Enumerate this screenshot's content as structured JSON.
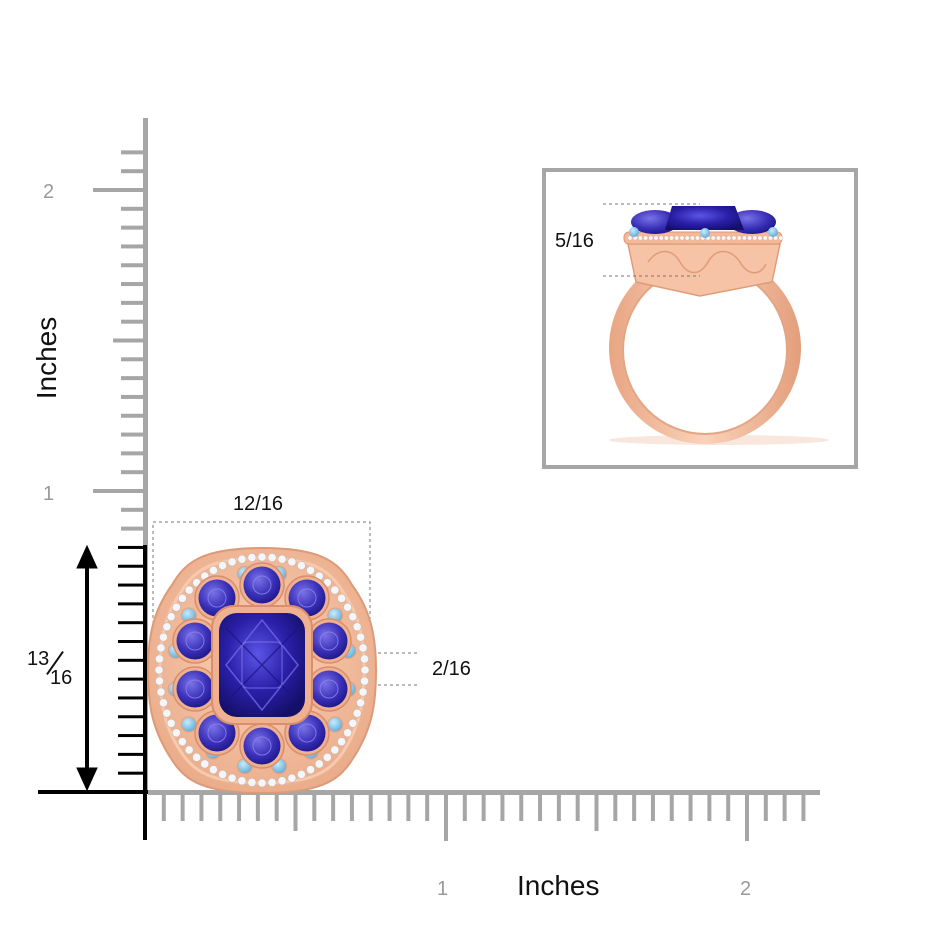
{
  "axes": {
    "x_title": "Inches",
    "y_title": "Inches",
    "x_ticks": [
      "1",
      "2"
    ],
    "y_ticks": [
      "1",
      "2"
    ]
  },
  "dimensions": {
    "width": "12/16",
    "height_num": "13",
    "height_den": "16",
    "shank": "2/16",
    "profile_height": "5/16"
  },
  "colors": {
    "rule": "#a6a6a6",
    "ring_metal": "#f1b795",
    "tanzanite": "#2a1fa8",
    "aquamarine": "#7cc4e8",
    "diamond": "#f4f6fa"
  }
}
